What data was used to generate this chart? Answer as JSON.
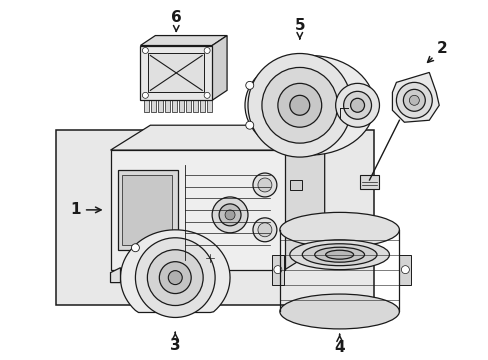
{
  "background_color": "#ffffff",
  "line_color": "#1a1a1a",
  "fig_width": 4.89,
  "fig_height": 3.6,
  "dpi": 100,
  "label_fontsize": 11,
  "fill_light": "#f0f0f0",
  "fill_mid": "#e0e0e0",
  "fill_dark": "#d0d0d0"
}
